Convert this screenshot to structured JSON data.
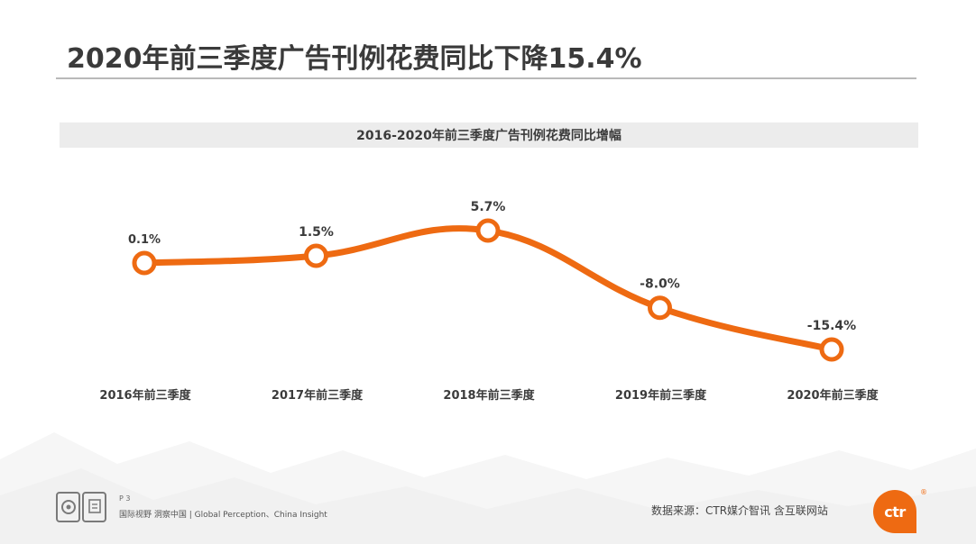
{
  "page": {
    "title": "2020年前三季度广告刊例花费同比下降15.4%",
    "page_number": "P 3",
    "tagline": "国际视野 洞察中国 | Global Perception、China Insight",
    "source": "数据来源：CTR媒介智讯 含互联网站",
    "brand_logo_text": "ctr",
    "registered_mark": "®"
  },
  "colors": {
    "accent": "#ee6a12",
    "title": "#3a3a3a",
    "banner": "#ececec"
  },
  "chart_data": {
    "type": "line",
    "title": "2016-2020年前三季度广告刊例花费同比增幅",
    "categories": [
      "2016年前三季度",
      "2017年前三季度",
      "2018年前三季度",
      "2019年前三季度",
      "2020年前三季度"
    ],
    "series": [
      {
        "name": "同比增幅",
        "values": [
          0.1,
          1.5,
          5.7,
          -8.0,
          -15.4
        ],
        "labels": [
          "0.1%",
          "1.5%",
          "5.7%",
          "-8.0%",
          "-15.4%"
        ]
      }
    ],
    "xlabel": "",
    "ylabel": "",
    "ylim": [
      -16,
      6
    ],
    "grid": false,
    "legend": "none",
    "smooth": true
  }
}
